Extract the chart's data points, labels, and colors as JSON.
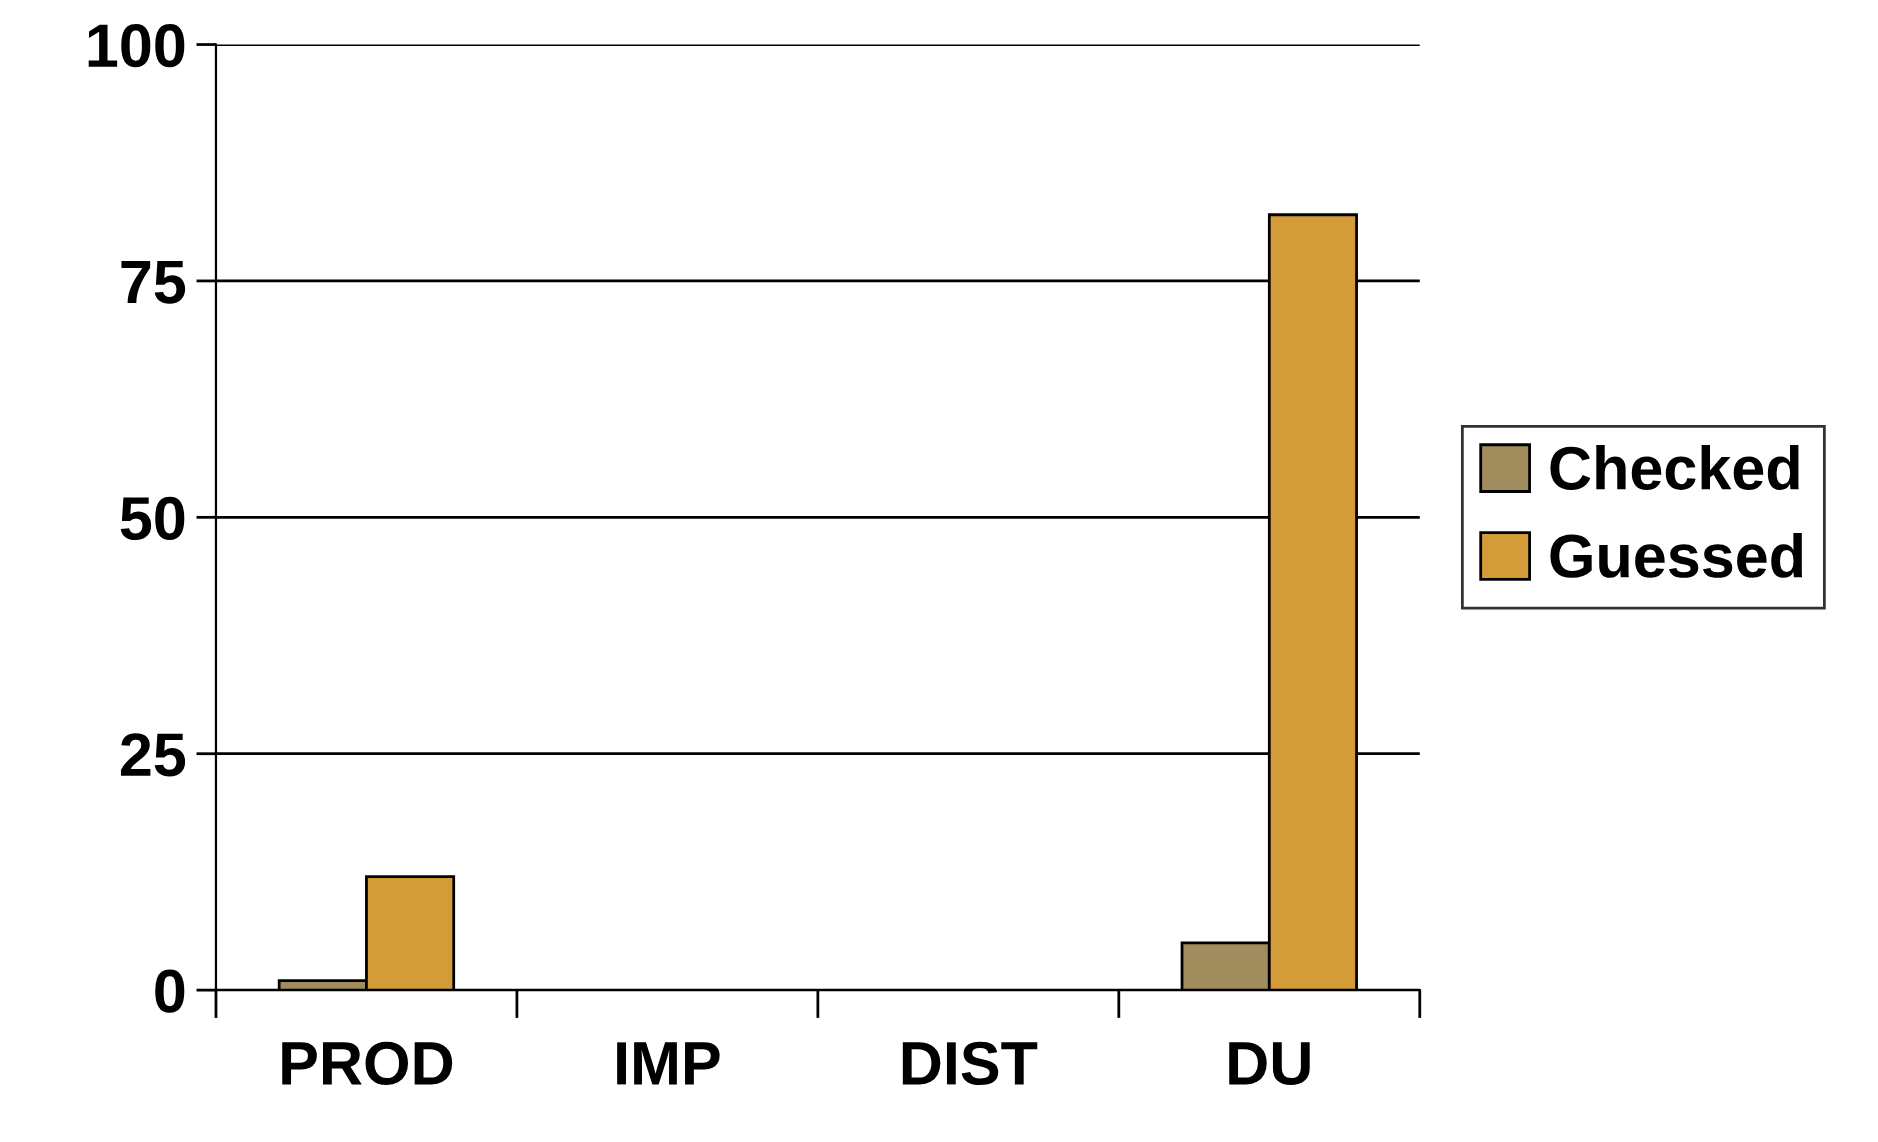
{
  "chart_data": {
    "type": "bar",
    "categories": [
      "PROD",
      "IMP",
      "DIST",
      "DU"
    ],
    "series": [
      {
        "name": "Checked",
        "color": "#a08c5c",
        "values": [
          1,
          null,
          null,
          5
        ]
      },
      {
        "name": "Guessed",
        "color": "#d49c38",
        "values": [
          12,
          null,
          null,
          82
        ]
      }
    ],
    "ylim": [
      0,
      100
    ],
    "yticks": [
      0,
      25,
      50,
      75,
      100
    ],
    "grid": "y",
    "legend": "right"
  }
}
